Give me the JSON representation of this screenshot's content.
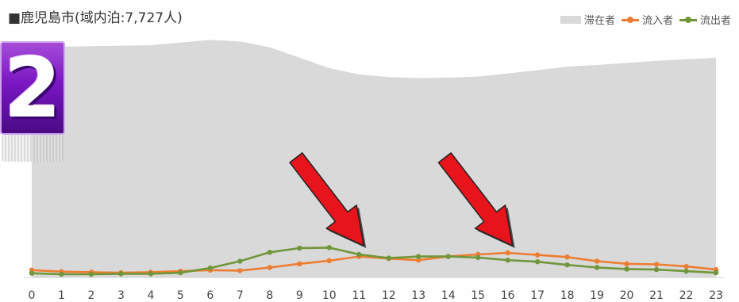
{
  "chart_data": {
    "type": "area",
    "title": "■鹿児島市(域内泊:7,727人)",
    "x": [
      0,
      1,
      2,
      3,
      4,
      5,
      6,
      7,
      8,
      9,
      10,
      11,
      12,
      13,
      14,
      15,
      16,
      17,
      18,
      19,
      20,
      21,
      22,
      23
    ],
    "ylim": [
      0,
      1000
    ],
    "legend_position": "top-right",
    "series": [
      {
        "name": "滞在者",
        "kind": "area",
        "color": "#d9d9d9",
        "values": [
          880,
          882,
          884,
          886,
          888,
          898,
          908,
          902,
          880,
          840,
          800,
          776,
          766,
          762,
          764,
          768,
          780,
          792,
          806,
          812,
          820,
          828,
          834,
          840
        ]
      },
      {
        "name": "流入者",
        "kind": "line",
        "color": "#ed7d31",
        "values": [
          28,
          22,
          20,
          18,
          20,
          24,
          28,
          26,
          38,
          52,
          64,
          80,
          72,
          66,
          80,
          88,
          94,
          86,
          78,
          62,
          52,
          50,
          42,
          30
        ]
      },
      {
        "name": "流出者",
        "kind": "line",
        "color": "#70963a",
        "values": [
          16,
          12,
          12,
          14,
          14,
          18,
          36,
          62,
          96,
          112,
          114,
          88,
          74,
          80,
          80,
          76,
          66,
          60,
          48,
          38,
          32,
          30,
          24,
          18
        ]
      }
    ]
  },
  "badge": {
    "number": "2"
  },
  "annotations": {
    "arrows": [
      {
        "target_x": 11
      },
      {
        "target_x": 16
      }
    ]
  }
}
